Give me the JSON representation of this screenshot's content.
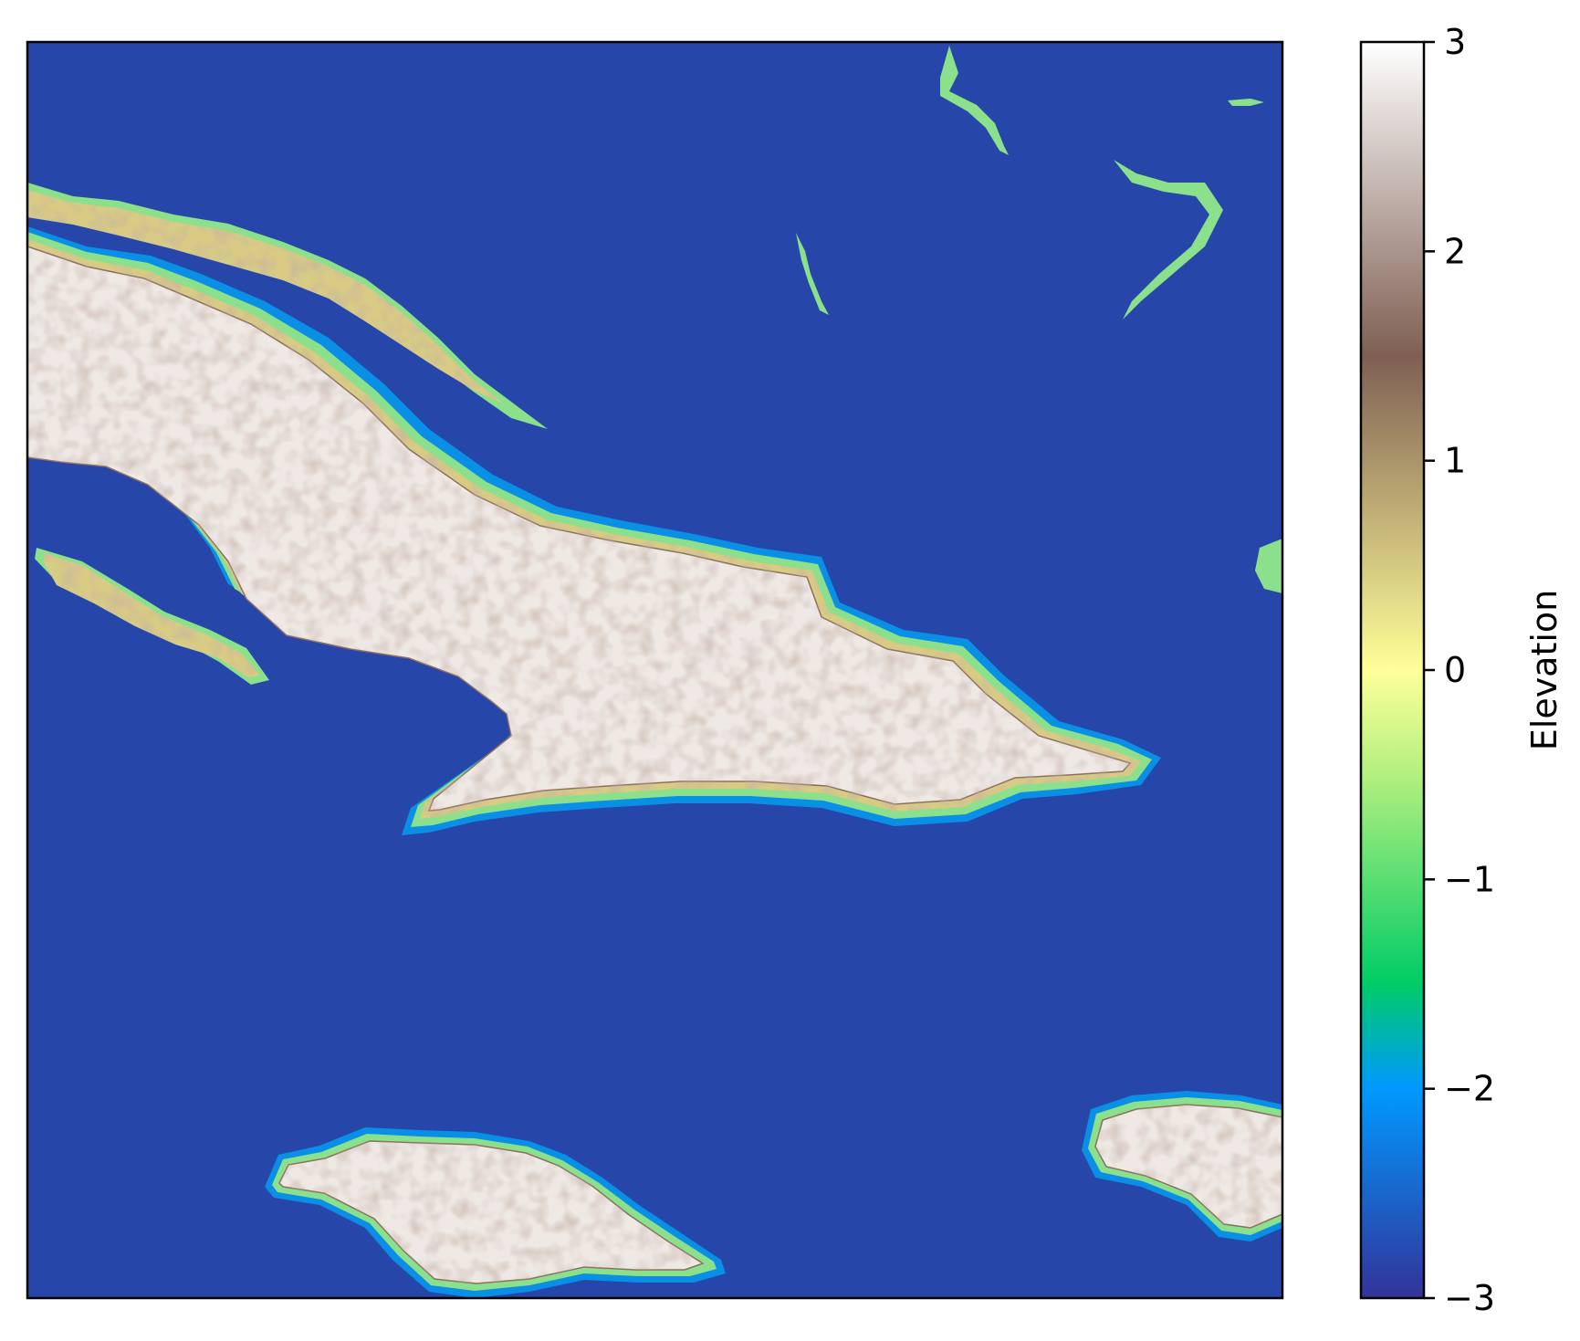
{
  "chart_data": {
    "type": "heatmap",
    "title": "",
    "xlabel": "",
    "ylabel": "",
    "colorbar": {
      "label": "Elevation",
      "vmin": -3,
      "vmax": 3,
      "ticks": [
        {
          "value": 3,
          "label": "3"
        },
        {
          "value": 2,
          "label": "2"
        },
        {
          "value": 1,
          "label": "1"
        },
        {
          "value": 0,
          "label": "0"
        },
        {
          "value": -1,
          "label": "−1"
        },
        {
          "value": -2,
          "label": "−2"
        },
        {
          "value": -3,
          "label": "−3"
        }
      ],
      "colormap": "terrain",
      "colormap_stops": [
        {
          "value": -3.0,
          "color": "#333399"
        },
        {
          "value": -2.0,
          "color": "#0099ff"
        },
        {
          "value": -1.5,
          "color": "#00cc66"
        },
        {
          "value": -0.5,
          "color": "#b3f07f"
        },
        {
          "value": 0.0,
          "color": "#ffff99"
        },
        {
          "value": 1.5,
          "color": "#7f5f53"
        },
        {
          "value": 3.0,
          "color": "#ffffff"
        }
      ]
    },
    "map_colors": {
      "ocean": "#2746aa",
      "land": "#efe9e6",
      "highland_texture": "#8c6e5e",
      "lowland": "#d8cc84",
      "coast_shallow": "#8be08b",
      "coast_deep": "#0a8fe6"
    },
    "axes_ticks_visible": false,
    "grid": false
  }
}
